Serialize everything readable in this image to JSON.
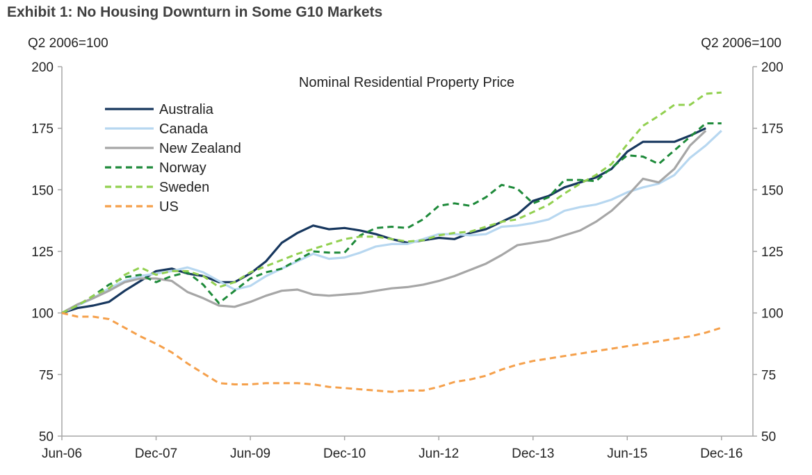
{
  "title": "Exhibit 1: No Housing Downturn in Some G10 Markets",
  "left_axis_unit": "Q2 2006=100",
  "right_axis_unit": "Q2 2006=100",
  "chart_data": {
    "type": "line",
    "title": "Nominal Residential Property Price",
    "xlabel": "",
    "ylabel": "Q2 2006=100",
    "x_tick_labels": [
      "Jun-06",
      "Dec-07",
      "Jun-09",
      "Dec-10",
      "Jun-12",
      "Dec-13",
      "Jun-15",
      "Dec-16"
    ],
    "y_ticks": [
      50,
      75,
      100,
      125,
      150,
      175,
      200
    ],
    "ylim": [
      50,
      200
    ],
    "x_start": "2006-06",
    "x_end": "2017-06",
    "grid": false,
    "legend_position": "top-left",
    "series": [
      {
        "name": "Australia",
        "color": "#17375e",
        "dash": "solid",
        "points": [
          [
            "2006-06",
            100
          ],
          [
            "2006-09",
            102
          ],
          [
            "2006-12",
            103
          ],
          [
            "2007-03",
            104.5
          ],
          [
            "2007-06",
            109
          ],
          [
            "2007-09",
            113
          ],
          [
            "2007-12",
            117
          ],
          [
            "2008-03",
            118
          ],
          [
            "2008-06",
            116
          ],
          [
            "2008-09",
            115
          ],
          [
            "2008-12",
            112.5
          ],
          [
            "2009-03",
            112.5
          ],
          [
            "2009-06",
            116
          ],
          [
            "2009-09",
            121
          ],
          [
            "2009-12",
            128.5
          ],
          [
            "2010-03",
            132.5
          ],
          [
            "2010-06",
            135.5
          ],
          [
            "2010-09",
            134
          ],
          [
            "2010-12",
            134.5
          ],
          [
            "2011-03",
            133.5
          ],
          [
            "2011-06",
            132
          ],
          [
            "2011-09",
            130
          ],
          [
            "2011-12",
            128.5
          ],
          [
            "2012-03",
            129.5
          ],
          [
            "2012-06",
            130.5
          ],
          [
            "2012-09",
            130
          ],
          [
            "2012-12",
            132.5
          ],
          [
            "2013-03",
            134
          ],
          [
            "2013-06",
            137
          ],
          [
            "2013-09",
            140
          ],
          [
            "2013-12",
            145.5
          ],
          [
            "2014-03",
            147.5
          ],
          [
            "2014-06",
            151
          ],
          [
            "2014-09",
            153
          ],
          [
            "2014-12",
            155
          ],
          [
            "2015-03",
            158.5
          ],
          [
            "2015-06",
            165.5
          ],
          [
            "2015-09",
            169.5
          ],
          [
            "2015-12",
            169.5
          ],
          [
            "2016-03",
            169.5
          ],
          [
            "2016-06",
            172
          ],
          [
            "2016-09",
            175
          ]
        ]
      },
      {
        "name": "Canada",
        "color": "#b7d7f0",
        "dash": "solid",
        "points": [
          [
            "2006-06",
            100
          ],
          [
            "2006-09",
            103
          ],
          [
            "2006-12",
            106
          ],
          [
            "2007-03",
            110
          ],
          [
            "2007-06",
            113
          ],
          [
            "2007-09",
            115
          ],
          [
            "2007-12",
            116
          ],
          [
            "2008-03",
            117
          ],
          [
            "2008-06",
            118.5
          ],
          [
            "2008-09",
            116.5
          ],
          [
            "2008-12",
            113
          ],
          [
            "2009-03",
            109.5
          ],
          [
            "2009-06",
            111
          ],
          [
            "2009-09",
            115
          ],
          [
            "2009-12",
            118
          ],
          [
            "2010-03",
            121
          ],
          [
            "2010-06",
            124
          ],
          [
            "2010-09",
            122
          ],
          [
            "2010-12",
            122.5
          ],
          [
            "2011-03",
            124.5
          ],
          [
            "2011-06",
            127
          ],
          [
            "2011-09",
            128
          ],
          [
            "2011-12",
            128
          ],
          [
            "2012-03",
            130
          ],
          [
            "2012-06",
            132
          ],
          [
            "2012-09",
            132
          ],
          [
            "2012-12",
            131.5
          ],
          [
            "2013-03",
            132
          ],
          [
            "2013-06",
            135
          ],
          [
            "2013-09",
            135.5
          ],
          [
            "2013-12",
            136.5
          ],
          [
            "2014-03",
            138
          ],
          [
            "2014-06",
            141.5
          ],
          [
            "2014-09",
            143
          ],
          [
            "2014-12",
            144
          ],
          [
            "2015-03",
            146
          ],
          [
            "2015-06",
            149
          ],
          [
            "2015-09",
            151
          ],
          [
            "2015-12",
            152.5
          ],
          [
            "2016-03",
            156
          ],
          [
            "2016-06",
            163
          ],
          [
            "2016-09",
            168
          ],
          [
            "2016-12",
            174
          ]
        ]
      },
      {
        "name": "New Zealand",
        "color": "#a6a6a6",
        "dash": "solid",
        "points": [
          [
            "2006-06",
            100
          ],
          [
            "2006-09",
            103.5
          ],
          [
            "2006-12",
            106
          ],
          [
            "2007-03",
            109
          ],
          [
            "2007-06",
            112.5
          ],
          [
            "2007-09",
            114
          ],
          [
            "2007-12",
            114
          ],
          [
            "2008-03",
            113
          ],
          [
            "2008-06",
            108.5
          ],
          [
            "2008-09",
            106
          ],
          [
            "2008-12",
            103
          ],
          [
            "2009-03",
            102.5
          ],
          [
            "2009-06",
            104.5
          ],
          [
            "2009-09",
            107
          ],
          [
            "2009-12",
            109
          ],
          [
            "2010-03",
            109.5
          ],
          [
            "2010-06",
            107.5
          ],
          [
            "2010-09",
            107
          ],
          [
            "2010-12",
            107.5
          ],
          [
            "2011-03",
            108
          ],
          [
            "2011-06",
            109
          ],
          [
            "2011-09",
            110
          ],
          [
            "2011-12",
            110.5
          ],
          [
            "2012-03",
            111.5
          ],
          [
            "2012-06",
            113
          ],
          [
            "2012-09",
            115
          ],
          [
            "2012-12",
            117.5
          ],
          [
            "2013-03",
            120
          ],
          [
            "2013-06",
            123.5
          ],
          [
            "2013-09",
            127.5
          ],
          [
            "2013-12",
            128.5
          ],
          [
            "2014-03",
            129.5
          ],
          [
            "2014-06",
            131.5
          ],
          [
            "2014-09",
            133.5
          ],
          [
            "2014-12",
            137
          ],
          [
            "2015-03",
            141.5
          ],
          [
            "2015-06",
            147.5
          ],
          [
            "2015-09",
            154.5
          ],
          [
            "2015-12",
            153
          ],
          [
            "2016-03",
            158.5
          ],
          [
            "2016-06",
            168
          ],
          [
            "2016-09",
            174
          ]
        ]
      },
      {
        "name": "Norway",
        "color": "#1e8a3a",
        "dash": "dashed",
        "points": [
          [
            "2006-06",
            100
          ],
          [
            "2006-09",
            103
          ],
          [
            "2006-12",
            107
          ],
          [
            "2007-03",
            111.5
          ],
          [
            "2007-06",
            114.5
          ],
          [
            "2007-09",
            115.5
          ],
          [
            "2007-12",
            112.5
          ],
          [
            "2008-03",
            115
          ],
          [
            "2008-06",
            116.5
          ],
          [
            "2008-09",
            111.5
          ],
          [
            "2008-12",
            104
          ],
          [
            "2009-03",
            109
          ],
          [
            "2009-06",
            114
          ],
          [
            "2009-09",
            116.5
          ],
          [
            "2009-12",
            118
          ],
          [
            "2010-03",
            121.5
          ],
          [
            "2010-06",
            125
          ],
          [
            "2010-09",
            124.5
          ],
          [
            "2010-12",
            124.5
          ],
          [
            "2011-03",
            131.5
          ],
          [
            "2011-06",
            134.5
          ],
          [
            "2011-09",
            135
          ],
          [
            "2011-12",
            134.5
          ],
          [
            "2012-03",
            138
          ],
          [
            "2012-06",
            143.5
          ],
          [
            "2012-09",
            144.5
          ],
          [
            "2012-12",
            143.5
          ],
          [
            "2013-03",
            147
          ],
          [
            "2013-06",
            152
          ],
          [
            "2013-09",
            150.5
          ],
          [
            "2013-12",
            144.5
          ],
          [
            "2014-03",
            147
          ],
          [
            "2014-06",
            154
          ],
          [
            "2014-09",
            154
          ],
          [
            "2014-12",
            153.5
          ],
          [
            "2015-03",
            159
          ],
          [
            "2015-06",
            164
          ],
          [
            "2015-09",
            163.5
          ],
          [
            "2015-12",
            160.5
          ],
          [
            "2016-03",
            166
          ],
          [
            "2016-06",
            171.5
          ],
          [
            "2016-09",
            177
          ],
          [
            "2016-12",
            177
          ]
        ]
      },
      {
        "name": "Sweden",
        "color": "#92d050",
        "dash": "dashed",
        "points": [
          [
            "2006-06",
            100
          ],
          [
            "2006-09",
            103
          ],
          [
            "2006-12",
            107
          ],
          [
            "2007-03",
            110
          ],
          [
            "2007-06",
            115.5
          ],
          [
            "2007-09",
            118.5
          ],
          [
            "2007-12",
            115.5
          ],
          [
            "2008-03",
            117
          ],
          [
            "2008-06",
            117
          ],
          [
            "2008-09",
            115
          ],
          [
            "2008-12",
            110.5
          ],
          [
            "2009-03",
            112.5
          ],
          [
            "2009-06",
            116.5
          ],
          [
            "2009-09",
            119
          ],
          [
            "2009-12",
            121.5
          ],
          [
            "2010-03",
            124
          ],
          [
            "2010-06",
            126
          ],
          [
            "2010-09",
            128
          ],
          [
            "2010-12",
            130
          ],
          [
            "2011-03",
            131
          ],
          [
            "2011-06",
            131
          ],
          [
            "2011-09",
            130
          ],
          [
            "2011-12",
            129
          ],
          [
            "2012-03",
            129.5
          ],
          [
            "2012-06",
            131.5
          ],
          [
            "2012-09",
            132.5
          ],
          [
            "2012-12",
            133
          ],
          [
            "2013-03",
            135
          ],
          [
            "2013-06",
            137
          ],
          [
            "2013-09",
            138
          ],
          [
            "2013-12",
            141
          ],
          [
            "2014-03",
            144
          ],
          [
            "2014-06",
            148.5
          ],
          [
            "2014-09",
            152.5
          ],
          [
            "2014-12",
            156
          ],
          [
            "2015-03",
            160.5
          ],
          [
            "2015-06",
            168.5
          ],
          [
            "2015-09",
            176
          ],
          [
            "2015-12",
            180
          ],
          [
            "2016-03",
            184.5
          ],
          [
            "2016-06",
            184.5
          ],
          [
            "2016-09",
            189
          ],
          [
            "2016-12",
            189.5
          ]
        ]
      },
      {
        "name": "US",
        "color": "#f5a04b",
        "dash": "dashed",
        "points": [
          [
            "2006-06",
            100
          ],
          [
            "2006-09",
            98.5
          ],
          [
            "2006-12",
            98.5
          ],
          [
            "2007-03",
            97.5
          ],
          [
            "2007-06",
            94
          ],
          [
            "2007-09",
            90.5
          ],
          [
            "2007-12",
            87.5
          ],
          [
            "2008-03",
            84
          ],
          [
            "2008-06",
            79.5
          ],
          [
            "2008-09",
            75.5
          ],
          [
            "2008-12",
            71.5
          ],
          [
            "2009-03",
            71
          ],
          [
            "2009-06",
            71
          ],
          [
            "2009-09",
            71.5
          ],
          [
            "2009-12",
            71.5
          ],
          [
            "2010-03",
            71.5
          ],
          [
            "2010-06",
            71
          ],
          [
            "2010-09",
            70
          ],
          [
            "2010-12",
            69.5
          ],
          [
            "2011-03",
            69
          ],
          [
            "2011-06",
            68.5
          ],
          [
            "2011-09",
            68
          ],
          [
            "2011-12",
            68.5
          ],
          [
            "2012-03",
            68.5
          ],
          [
            "2012-06",
            70
          ],
          [
            "2012-09",
            72
          ],
          [
            "2012-12",
            73
          ],
          [
            "2013-03",
            74.5
          ],
          [
            "2013-06",
            77
          ],
          [
            "2013-09",
            79
          ],
          [
            "2013-12",
            80.5
          ],
          [
            "2014-03",
            81.5
          ],
          [
            "2014-06",
            82.5
          ],
          [
            "2014-09",
            83.5
          ],
          [
            "2014-12",
            84.5
          ],
          [
            "2015-03",
            85.5
          ],
          [
            "2015-06",
            86.5
          ],
          [
            "2015-09",
            87.5
          ],
          [
            "2015-12",
            88.5
          ],
          [
            "2016-03",
            89.5
          ],
          [
            "2016-06",
            90.5
          ],
          [
            "2016-09",
            92
          ],
          [
            "2016-12",
            94
          ]
        ]
      }
    ]
  }
}
